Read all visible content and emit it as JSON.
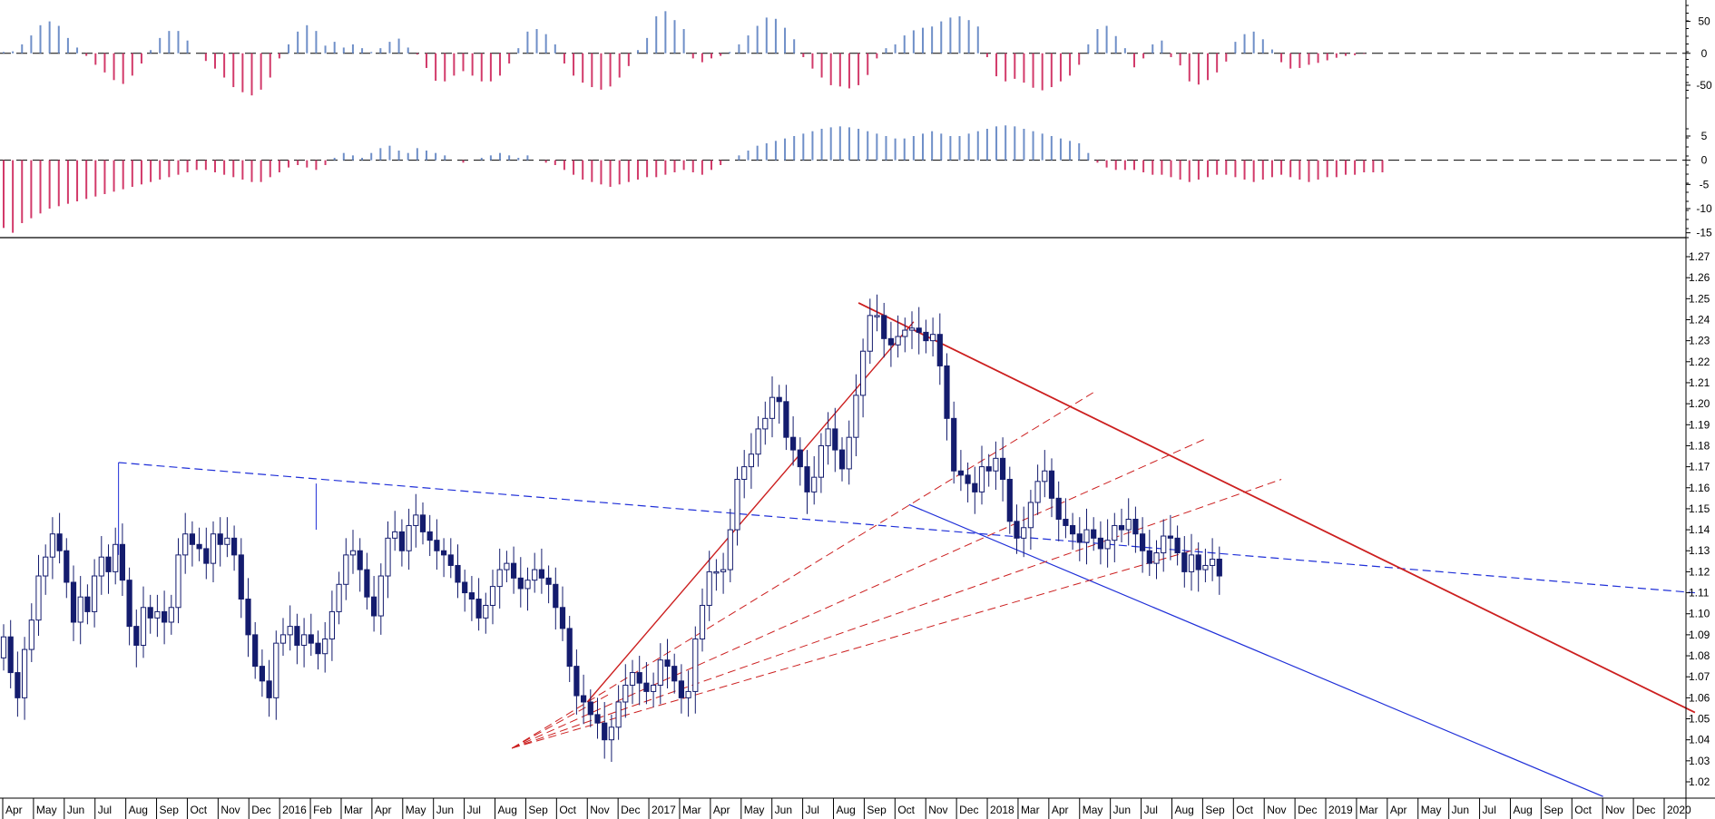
{
  "colors": {
    "up": "#6f8fc8",
    "down": "#d23a6a",
    "candle": "#141c6e",
    "trend_red": "#cc1f1f",
    "trend_blue": "#1f2fd8",
    "axis": "#000000"
  },
  "chart_data": [
    {
      "type": "bar",
      "panel": "oscillator-1",
      "ylim": [
        -70,
        75
      ],
      "y_ticks": [
        "50",
        "0",
        "-50"
      ],
      "y_tick_values": [
        50,
        0,
        -50
      ],
      "grid": false,
      "zero_line": "dashed",
      "values": [
        2,
        3,
        14,
        28,
        44,
        50,
        43,
        24,
        9,
        -4,
        -18,
        -30,
        -42,
        -48,
        -35,
        -16,
        5,
        24,
        35,
        35,
        20,
        0,
        -12,
        -24,
        -38,
        -53,
        -61,
        -66,
        -57,
        -38,
        -8,
        14,
        34,
        44,
        35,
        12,
        18,
        9,
        14,
        8,
        2,
        8,
        18,
        23,
        9,
        -2,
        -23,
        -43,
        -44,
        -35,
        -28,
        -35,
        -44,
        -44,
        -35,
        -16,
        8,
        34,
        38,
        30,
        14,
        -16,
        -35,
        -46,
        -53,
        -57,
        -52,
        -38,
        -20,
        5,
        24,
        58,
        66,
        52,
        38,
        -8,
        -14,
        -8,
        -4,
        2,
        14,
        28,
        43,
        56,
        54,
        40,
        22,
        -6,
        -24,
        -38,
        -50,
        -52,
        -55,
        -50,
        -34,
        -8,
        8,
        14,
        28,
        36,
        40,
        42,
        50,
        56,
        58,
        52,
        42,
        -6,
        -36,
        -44,
        -40,
        -46,
        -54,
        -58,
        -53,
        -44,
        -35,
        -18,
        14,
        38,
        43,
        27,
        8,
        -22,
        -8,
        14,
        20,
        -6,
        -19,
        -44,
        -49,
        -42,
        -30,
        -13,
        18,
        30,
        34,
        22,
        6,
        -14,
        -24,
        -23,
        -18,
        -15,
        -11,
        -7,
        -4,
        -3,
        -1
      ],
      "x_range": [
        "2015-04",
        "2019-05"
      ]
    },
    {
      "type": "bar",
      "panel": "oscillator-2",
      "ylim": [
        -16,
        6.5
      ],
      "y_ticks": [
        "5",
        "0",
        "-5",
        "-10",
        "-15"
      ],
      "y_tick_values": [
        5,
        0,
        -5,
        -10,
        -15
      ],
      "grid": false,
      "zero_line": "dashed",
      "values": [
        -14,
        -15,
        -13,
        -12,
        -11,
        -10,
        -9.5,
        -9,
        -8.5,
        -8,
        -7.5,
        -7,
        -6.5,
        -6,
        -5.5,
        -5,
        -4.5,
        -4,
        -3.5,
        -3,
        -2.5,
        -2,
        -2,
        -2.5,
        -3,
        -3.5,
        -4,
        -4.5,
        -4.5,
        -3.5,
        -2.5,
        -1.5,
        -1,
        -1.5,
        -2,
        -1,
        0.5,
        1.5,
        1,
        0.5,
        1.5,
        2.5,
        3,
        2,
        1.5,
        2.5,
        2,
        1.5,
        1,
        0,
        -0.5,
        0,
        0.5,
        1,
        1.5,
        1,
        0.5,
        1,
        0,
        -0.5,
        -1,
        -2,
        -3,
        -4,
        -4.5,
        -5,
        -5.5,
        -5,
        -4.5,
        -4,
        -3.5,
        -3.5,
        -3,
        -2.5,
        -2,
        -2.5,
        -3,
        -2,
        -1,
        0,
        1,
        2,
        3,
        3.5,
        4,
        4.5,
        5,
        5.5,
        6,
        6.5,
        6.8,
        7,
        6.8,
        6.5,
        6,
        5.5,
        5,
        4.5,
        4.5,
        5,
        5.5,
        6,
        5.5,
        5,
        5,
        5.5,
        6,
        6.5,
        7,
        7.2,
        7,
        6.5,
        6,
        5.5,
        5,
        4.5,
        4,
        3.5,
        1.5,
        -0.5,
        -1.5,
        -2,
        -2,
        -2,
        -2.5,
        -3,
        -3,
        -3.5,
        -4,
        -4.5,
        -4,
        -3.5,
        -3,
        -3,
        -3.5,
        -4,
        -4.5,
        -4,
        -3.5,
        -3,
        -3.5,
        -4,
        -4.5,
        -4,
        -3.5,
        -3.5,
        -3,
        -3,
        -2.5,
        -2.5,
        -2.5
      ],
      "x_range": [
        "2015-04",
        "2019-05"
      ]
    },
    {
      "type": "candlestick",
      "panel": "price",
      "ylim": [
        1.012,
        1.275
      ],
      "y_ticks": [
        "1.27",
        "1.26",
        "1.25",
        "1.24",
        "1.23",
        "1.22",
        "1.21",
        "1.20",
        "1.19",
        "1.18",
        "1.17",
        "1.16",
        "1.15",
        "1.14",
        "1.13",
        "1.12",
        "1.11",
        "1.10",
        "1.09",
        "1.08",
        "1.07",
        "1.06",
        "1.05",
        "1.04",
        "1.03",
        "1.02"
      ],
      "y_tick_values": [
        1.27,
        1.26,
        1.25,
        1.24,
        1.23,
        1.22,
        1.21,
        1.2,
        1.19,
        1.18,
        1.17,
        1.16,
        1.15,
        1.14,
        1.13,
        1.12,
        1.11,
        1.1,
        1.09,
        1.08,
        1.07,
        1.06,
        1.05,
        1.04,
        1.03,
        1.02
      ],
      "grid": false,
      "x_labels": [
        "Apr",
        "May",
        "Jun",
        "Jul",
        "Aug",
        "Sep",
        "Oct",
        "Nov",
        "Dec",
        "2016",
        "Feb",
        "Mar",
        "Apr",
        "May",
        "Jun",
        "Jul",
        "Aug",
        "Sep",
        "Oct",
        "Nov",
        "Dec",
        "2017",
        "Mar",
        "Apr",
        "May",
        "Jun",
        "Jul",
        "Aug",
        "Sep",
        "Oct",
        "Nov",
        "Dec",
        "2018",
        "Mar",
        "Apr",
        "May",
        "Jun",
        "Jul",
        "Aug",
        "Sep",
        "Oct",
        "Nov",
        "Dec",
        "2019",
        "Mar",
        "Apr",
        "May",
        "Jun",
        "Jul",
        "Aug",
        "Sep",
        "Oct",
        "Nov",
        "Dec",
        "2020"
      ],
      "x_start": "2015-04",
      "x_end": "2020-01",
      "closes": [
        1.089,
        1.072,
        1.06,
        1.083,
        1.097,
        1.118,
        1.127,
        1.138,
        1.13,
        1.115,
        1.096,
        1.108,
        1.101,
        1.118,
        1.127,
        1.12,
        1.133,
        1.116,
        1.094,
        1.085,
        1.103,
        1.098,
        1.101,
        1.096,
        1.103,
        1.128,
        1.138,
        1.133,
        1.131,
        1.124,
        1.138,
        1.133,
        1.136,
        1.128,
        1.107,
        1.09,
        1.075,
        1.068,
        1.06,
        1.086,
        1.09,
        1.094,
        1.085,
        1.09,
        1.086,
        1.081,
        1.088,
        1.101,
        1.114,
        1.128,
        1.13,
        1.121,
        1.108,
        1.099,
        1.118,
        1.136,
        1.139,
        1.13,
        1.142,
        1.147,
        1.139,
        1.135,
        1.13,
        1.128,
        1.123,
        1.115,
        1.11,
        1.107,
        1.098,
        1.104,
        1.113,
        1.121,
        1.124,
        1.117,
        1.112,
        1.116,
        1.121,
        1.117,
        1.114,
        1.103,
        1.093,
        1.075,
        1.061,
        1.058,
        1.052,
        1.048,
        1.04,
        1.046,
        1.058,
        1.066,
        1.072,
        1.067,
        1.063,
        1.066,
        1.078,
        1.075,
        1.068,
        1.06,
        1.063,
        1.088,
        1.104,
        1.12,
        1.12,
        1.121,
        1.14,
        1.164,
        1.17,
        1.176,
        1.188,
        1.193,
        1.203,
        1.201,
        1.184,
        1.178,
        1.17,
        1.158,
        1.165,
        1.18,
        1.188,
        1.178,
        1.169,
        1.184,
        1.204,
        1.225,
        1.242,
        1.242,
        1.231,
        1.228,
        1.232,
        1.235,
        1.236,
        1.234,
        1.23,
        1.233,
        1.218,
        1.193,
        1.168,
        1.166,
        1.162,
        1.158,
        1.17,
        1.168,
        1.174,
        1.164,
        1.144,
        1.136,
        1.141,
        1.153,
        1.163,
        1.168,
        1.155,
        1.145,
        1.142,
        1.138,
        1.134,
        1.14,
        1.136,
        1.131,
        1.135,
        1.142,
        1.14,
        1.145,
        1.138,
        1.13,
        1.124,
        1.129,
        1.137,
        1.136,
        1.129,
        1.12,
        1.128,
        1.121,
        1.123,
        1.126,
        1.118
      ]
    }
  ]
}
